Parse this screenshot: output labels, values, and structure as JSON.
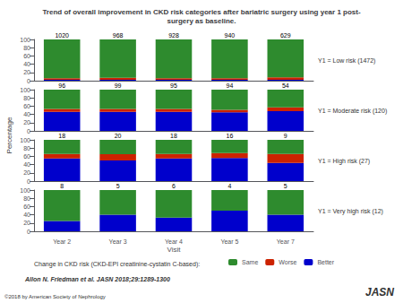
{
  "chart_data": [
    {
      "type": "bar",
      "stacked": true,
      "grid": false,
      "tick_labels": "y",
      "title": "Trend of overall improvement in CKD risk categories after bariatric surgery using year 1 post-\nsurgery as baseline.",
      "ylabel": "Percentage",
      "subtitle": "Y1 = Low risk (1472)",
      "categories": [
        "Year 2",
        "Year 3",
        "Year 4",
        "Year 5",
        "Year 7"
      ],
      "series": [
        {
          "name": "Better",
          "color": "#0000cc",
          "values": [
            2,
            2,
            2,
            2,
            2
          ]
        },
        {
          "name": "Worse",
          "color": "#cc2200",
          "values": [
            4,
            5,
            4,
            4,
            6
          ]
        },
        {
          "name": "Same",
          "color": "#2e8b2e",
          "values": [
            94,
            93,
            94,
            94,
            92
          ]
        }
      ],
      "n_labels": [
        1020,
        968,
        928,
        940,
        629
      ],
      "ylim": [
        0,
        100
      ],
      "yticks": [
        0,
        20,
        40,
        60,
        80,
        100
      ]
    },
    {
      "type": "bar",
      "stacked": true,
      "grid": false,
      "tick_labels": "y",
      "subtitle": "Y1 = Moderate risk (120)",
      "categories": [
        "Year 2",
        "Year 3",
        "Year 4",
        "Year 5",
        "Year 7"
      ],
      "series": [
        {
          "name": "Better",
          "color": "#0000cc",
          "values": [
            46,
            46,
            46,
            45,
            48
          ]
        },
        {
          "name": "Worse",
          "color": "#cc2200",
          "values": [
            7,
            7,
            7,
            6,
            9
          ]
        },
        {
          "name": "Same",
          "color": "#2e8b2e",
          "values": [
            47,
            47,
            47,
            49,
            43
          ]
        }
      ],
      "n_labels": [
        96,
        99,
        95,
        94,
        54
      ],
      "ylim": [
        0,
        100
      ],
      "yticks": [
        0,
        20,
        40,
        60,
        80,
        100
      ]
    },
    {
      "type": "bar",
      "stacked": true,
      "grid": false,
      "tick_labels": "y",
      "subtitle": "Y1 = High risk (27)",
      "categories": [
        "Year 2",
        "Year 3",
        "Year 4",
        "Year 5",
        "Year 7"
      ],
      "series": [
        {
          "name": "Better",
          "color": "#0000cc",
          "values": [
            55,
            50,
            55,
            56,
            44
          ]
        },
        {
          "name": "Worse",
          "color": "#cc2200",
          "values": [
            11,
            15,
            11,
            12,
            22
          ]
        },
        {
          "name": "Same",
          "color": "#2e8b2e",
          "values": [
            34,
            35,
            34,
            32,
            34
          ]
        }
      ],
      "n_labels": [
        18,
        20,
        18,
        16,
        9
      ],
      "ylim": [
        0,
        100
      ],
      "yticks": [
        0,
        20,
        40,
        60,
        80,
        100
      ]
    },
    {
      "type": "bar",
      "stacked": true,
      "grid": false,
      "legend": "bottom",
      "subtitle": "Y1 = Very high risk (12)",
      "xlabel": "Visit",
      "legend_title": "Change in CKD risk (CKD-EPI creatinine-cystatin C-based):",
      "annotations": [
        "Allon N. Friedman et al. JASN 2018;29:1289-1300",
        "JASN",
        "©2018 by American Society of Nephrology"
      ],
      "categories": [
        "Year 2",
        "Year 3",
        "Year 4",
        "Year 5",
        "Year 7"
      ],
      "series": [
        {
          "name": "Better",
          "color": "#0000cc",
          "values": [
            25,
            40,
            33,
            50,
            40
          ]
        },
        {
          "name": "Worse",
          "color": "#cc2200",
          "values": [
            0,
            0,
            0,
            0,
            0
          ]
        },
        {
          "name": "Same",
          "color": "#2e8b2e",
          "values": [
            75,
            60,
            67,
            50,
            60
          ]
        }
      ],
      "n_labels": [
        8,
        5,
        6,
        4,
        5
      ],
      "ylim": [
        0,
        100
      ],
      "yticks": [
        0,
        20,
        40,
        60,
        80,
        100
      ]
    }
  ]
}
